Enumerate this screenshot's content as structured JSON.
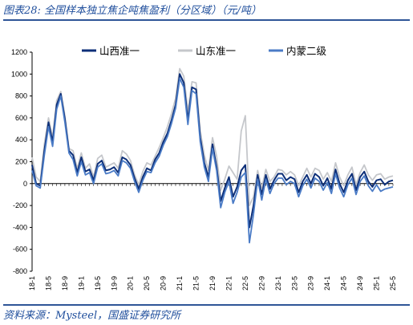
{
  "header": {
    "title": "图表28:  全国样本独立焦企吨焦盈利（分区域）（元/吨）"
  },
  "footer": {
    "source": "资料来源：Mysteel，国盛证券研究所"
  },
  "chart_data": {
    "type": "line",
    "title": "",
    "xlabel": "",
    "ylabel": "",
    "unit": "元/吨",
    "ylim": [
      -800,
      1200
    ],
    "yticks": [
      -800,
      -600,
      -400,
      -200,
      0,
      200,
      400,
      600,
      800,
      1000,
      1200
    ],
    "xlim": [
      "2018-01",
      "2025-05"
    ],
    "xticks": [
      "18-1",
      "18-5",
      "18-9",
      "19-1",
      "19-5",
      "19-9",
      "20-1",
      "20-5",
      "20-9",
      "21-1",
      "21-5",
      "21-9",
      "22-1",
      "22-5",
      "22-9",
      "23-1",
      "23-5",
      "23-9",
      "24-1",
      "24-5",
      "24-9",
      "25-1",
      "25-5"
    ],
    "legend_position": "top",
    "grid": false,
    "colors": {
      "山西准一": "#0d2f78",
      "山东准一": "#c5c7cb",
      "内蒙二级": "#4a7bc6"
    },
    "series": [
      {
        "name": "山西准一",
        "x": [
          "2018-01",
          "2018-02",
          "2018-03",
          "2018-04",
          "2018-05",
          "2018-06",
          "2018-07",
          "2018-08",
          "2018-09",
          "2018-10",
          "2018-11",
          "2018-12",
          "2019-01",
          "2019-02",
          "2019-03",
          "2019-04",
          "2019-05",
          "2019-06",
          "2019-07",
          "2019-08",
          "2019-09",
          "2019-10",
          "2019-11",
          "2019-12",
          "2020-01",
          "2020-02",
          "2020-03",
          "2020-04",
          "2020-05",
          "2020-06",
          "2020-07",
          "2020-08",
          "2020-09",
          "2020-10",
          "2020-11",
          "2020-12",
          "2021-01",
          "2021-02",
          "2021-03",
          "2021-04",
          "2021-05",
          "2021-06",
          "2021-07",
          "2021-08",
          "2021-09",
          "2021-10",
          "2021-11",
          "2021-12",
          "2022-01",
          "2022-02",
          "2022-03",
          "2022-04",
          "2022-05",
          "2022-06",
          "2022-07",
          "2022-08",
          "2022-09",
          "2022-10",
          "2022-11",
          "2022-12",
          "2023-01",
          "2023-02",
          "2023-03",
          "2023-04",
          "2023-05",
          "2023-06",
          "2023-07",
          "2023-08",
          "2023-09",
          "2023-10",
          "2023-11",
          "2023-12",
          "2024-01",
          "2024-02",
          "2024-03",
          "2024-04",
          "2024-05",
          "2024-06",
          "2024-07",
          "2024-08",
          "2024-09",
          "2024-10",
          "2024-11",
          "2024-12",
          "2025-01",
          "2025-02",
          "2025-03",
          "2025-04",
          "2025-05"
        ],
        "values": [
          170,
          0,
          -20,
          300,
          560,
          380,
          720,
          820,
          590,
          300,
          260,
          100,
          240,
          110,
          130,
          30,
          180,
          210,
          120,
          130,
          150,
          100,
          240,
          220,
          170,
          50,
          -50,
          60,
          140,
          120,
          220,
          280,
          380,
          460,
          580,
          720,
          1000,
          920,
          580,
          880,
          860,
          420,
          190,
          60,
          360,
          150,
          -160,
          -40,
          60,
          -120,
          -30,
          120,
          170,
          -400,
          -200,
          80,
          -100,
          80,
          -50,
          30,
          90,
          90,
          30,
          60,
          40,
          -80,
          20,
          80,
          0,
          90,
          60,
          -20,
          50,
          -50,
          130,
          0,
          -80,
          30,
          90,
          -60,
          60,
          110,
          20,
          -30,
          30,
          40,
          -10,
          20,
          30
        ]
      },
      {
        "name": "山东准一",
        "x": [
          "2018-01",
          "2018-02",
          "2018-03",
          "2018-04",
          "2018-05",
          "2018-06",
          "2018-07",
          "2018-08",
          "2018-09",
          "2018-10",
          "2018-11",
          "2018-12",
          "2019-01",
          "2019-02",
          "2019-03",
          "2019-04",
          "2019-05",
          "2019-06",
          "2019-07",
          "2019-08",
          "2019-09",
          "2019-10",
          "2019-11",
          "2019-12",
          "2020-01",
          "2020-02",
          "2020-03",
          "2020-04",
          "2020-05",
          "2020-06",
          "2020-07",
          "2020-08",
          "2020-09",
          "2020-10",
          "2020-11",
          "2020-12",
          "2021-01",
          "2021-02",
          "2021-03",
          "2021-04",
          "2021-05",
          "2021-06",
          "2021-07",
          "2021-08",
          "2021-09",
          "2021-10",
          "2021-11",
          "2021-12",
          "2022-01",
          "2022-02",
          "2022-03",
          "2022-04",
          "2022-05",
          "2022-06",
          "2022-07",
          "2022-08",
          "2022-09",
          "2022-10",
          "2022-11",
          "2022-12",
          "2023-01",
          "2023-02",
          "2023-03",
          "2023-04",
          "2023-05",
          "2023-06",
          "2023-07",
          "2023-08",
          "2023-09",
          "2023-10",
          "2023-11",
          "2023-12",
          "2024-01",
          "2024-02",
          "2024-03",
          "2024-04",
          "2024-05",
          "2024-06",
          "2024-07",
          "2024-08",
          "2024-09",
          "2024-10",
          "2024-11",
          "2024-12",
          "2025-01",
          "2025-02",
          "2025-03",
          "2025-04",
          "2025-05"
        ],
        "values": [
          240,
          60,
          20,
          360,
          600,
          420,
          760,
          840,
          620,
          320,
          300,
          140,
          280,
          140,
          180,
          60,
          230,
          260,
          150,
          170,
          190,
          140,
          300,
          270,
          210,
          80,
          -10,
          110,
          190,
          170,
          250,
          330,
          420,
          520,
          640,
          780,
          1050,
          980,
          660,
          930,
          920,
          480,
          260,
          120,
          420,
          250,
          -60,
          40,
          160,
          100,
          40,
          480,
          620,
          -200,
          -120,
          120,
          -40,
          130,
          20,
          60,
          130,
          120,
          80,
          110,
          80,
          -20,
          60,
          140,
          60,
          140,
          120,
          40,
          100,
          20,
          190,
          60,
          -20,
          80,
          150,
          -10,
          100,
          170,
          80,
          30,
          80,
          90,
          40,
          60,
          70
        ]
      },
      {
        "name": "内蒙二级",
        "x": [
          "2018-01",
          "2018-02",
          "2018-03",
          "2018-04",
          "2018-05",
          "2018-06",
          "2018-07",
          "2018-08",
          "2018-09",
          "2018-10",
          "2018-11",
          "2018-12",
          "2019-01",
          "2019-02",
          "2019-03",
          "2019-04",
          "2019-05",
          "2019-06",
          "2019-07",
          "2019-08",
          "2019-09",
          "2019-10",
          "2019-11",
          "2019-12",
          "2020-01",
          "2020-02",
          "2020-03",
          "2020-04",
          "2020-05",
          "2020-06",
          "2020-07",
          "2020-08",
          "2020-09",
          "2020-10",
          "2020-11",
          "2020-12",
          "2021-01",
          "2021-02",
          "2021-03",
          "2021-04",
          "2021-05",
          "2021-06",
          "2021-07",
          "2021-08",
          "2021-09",
          "2021-10",
          "2021-11",
          "2021-12",
          "2022-01",
          "2022-02",
          "2022-03",
          "2022-04",
          "2022-05",
          "2022-06",
          "2022-07",
          "2022-08",
          "2022-09",
          "2022-10",
          "2022-11",
          "2022-12",
          "2023-01",
          "2023-02",
          "2023-03",
          "2023-04",
          "2023-05",
          "2023-06",
          "2023-07",
          "2023-08",
          "2023-09",
          "2023-10",
          "2023-11",
          "2023-12",
          "2024-01",
          "2024-02",
          "2024-03",
          "2024-04",
          "2024-05",
          "2024-06",
          "2024-07",
          "2024-08",
          "2024-09",
          "2024-10",
          "2024-11",
          "2024-12",
          "2025-01",
          "2025-02",
          "2025-03",
          "2025-04",
          "2025-05"
        ],
        "values": [
          120,
          -20,
          -40,
          260,
          520,
          340,
          680,
          800,
          560,
          280,
          220,
          70,
          200,
          80,
          100,
          0,
          150,
          180,
          90,
          100,
          120,
          70,
          210,
          190,
          140,
          20,
          -80,
          30,
          110,
          100,
          190,
          250,
          350,
          430,
          550,
          690,
          960,
          880,
          540,
          850,
          820,
          380,
          150,
          20,
          320,
          120,
          -220,
          -80,
          20,
          -180,
          -80,
          60,
          100,
          -540,
          -280,
          40,
          -150,
          40,
          -90,
          0,
          50,
          50,
          -10,
          20,
          0,
          -120,
          -20,
          40,
          -40,
          50,
          20,
          -60,
          10,
          -90,
          90,
          -40,
          -120,
          -10,
          50,
          -100,
          20,
          70,
          -20,
          -70,
          -10,
          -70,
          -50,
          -40,
          -30
        ]
      }
    ]
  }
}
